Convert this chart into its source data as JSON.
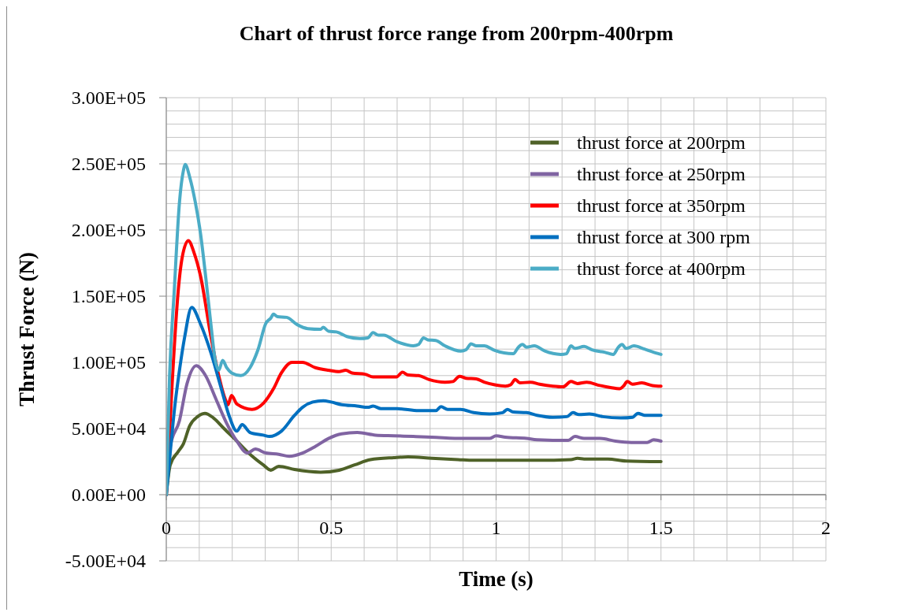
{
  "chart_data": {
    "type": "line",
    "title": "Chart of thrust force range from 200rpm-400rpm",
    "xlabel": "Time (s)",
    "ylabel": "Thrust Force (N)",
    "xlim": [
      0,
      2
    ],
    "xticks": [
      0,
      {
        "value": 0.1,
        "label": null
      },
      {
        "value": 0.2,
        "label": null
      },
      {
        "value": 0.3,
        "label": null
      },
      {
        "value": 0.4,
        "label": null
      },
      0.5,
      {
        "value": 0.6,
        "label": null
      },
      {
        "value": 0.7,
        "label": null
      },
      {
        "value": 0.8,
        "label": null
      },
      {
        "value": 0.9,
        "label": null
      },
      1,
      {
        "value": 1.1,
        "label": null
      },
      {
        "value": 1.2,
        "label": null
      },
      {
        "value": 1.3,
        "label": null
      },
      {
        "value": 1.4,
        "label": null
      },
      1.5,
      {
        "value": 1.6,
        "label": null
      },
      {
        "value": 1.7,
        "label": null
      },
      {
        "value": 1.8,
        "label": null
      },
      {
        "value": 1.9,
        "label": null
      },
      2
    ],
    "ylim": [
      -50000,
      300000
    ],
    "yticks": [
      {
        "value": -50000,
        "label": "-5.00E+04"
      },
      {
        "value": -40000,
        "label": null
      },
      {
        "value": -30000,
        "label": null
      },
      {
        "value": -20000,
        "label": null
      },
      {
        "value": -10000,
        "label": null
      },
      {
        "value": 0,
        "label": "0.00E+00"
      },
      {
        "value": 10000,
        "label": null
      },
      {
        "value": 20000,
        "label": null
      },
      {
        "value": 30000,
        "label": null
      },
      {
        "value": 40000,
        "label": null
      },
      {
        "value": 50000,
        "label": "5.00E+04"
      },
      {
        "value": 60000,
        "label": null
      },
      {
        "value": 70000,
        "label": null
      },
      {
        "value": 80000,
        "label": null
      },
      {
        "value": 90000,
        "label": null
      },
      {
        "value": 100000,
        "label": "1.00E+05"
      },
      {
        "value": 110000,
        "label": null
      },
      {
        "value": 120000,
        "label": null
      },
      {
        "value": 130000,
        "label": null
      },
      {
        "value": 140000,
        "label": null
      },
      {
        "value": 150000,
        "label": "1.50E+05"
      },
      {
        "value": 160000,
        "label": null
      },
      {
        "value": 170000,
        "label": null
      },
      {
        "value": 180000,
        "label": null
      },
      {
        "value": 190000,
        "label": null
      },
      {
        "value": 200000,
        "label": "2.00E+05"
      },
      {
        "value": 210000,
        "label": null
      },
      {
        "value": 220000,
        "label": null
      },
      {
        "value": 230000,
        "label": null
      },
      {
        "value": 240000,
        "label": null
      },
      {
        "value": 250000,
        "label": "2.50E+05"
      },
      {
        "value": 260000,
        "label": null
      },
      {
        "value": 270000,
        "label": null
      },
      {
        "value": 280000,
        "label": null
      },
      {
        "value": 290000,
        "label": null
      },
      {
        "value": 300000,
        "label": "3.00E+05"
      }
    ],
    "grid": true,
    "legend": "top right",
    "series": [
      {
        "name": "thrust force at 200rpm",
        "color": "#4f6228",
        "x": [
          0,
          0.012,
          0.036,
          0.052,
          0.071,
          0.095,
          0.117,
          0.143,
          0.175,
          0.214,
          0.254,
          0.294,
          0.317,
          0.341,
          0.389,
          0.468,
          0.524,
          0.571,
          0.619,
          0.69,
          0.733,
          0.805,
          0.885,
          0.932,
          0.996,
          1.124,
          1.227,
          1.247,
          1.267,
          1.339,
          1.394,
          1.5
        ],
        "values": [
          0,
          22500,
          32500,
          38500,
          52000,
          59000,
          61500,
          58000,
          50000,
          40500,
          30500,
          22500,
          18500,
          21500,
          19000,
          17000,
          18500,
          22500,
          26500,
          28000,
          28500,
          27500,
          26500,
          26000,
          26000,
          26000,
          26500,
          27500,
          27000,
          27000,
          25500,
          25000
        ]
      },
      {
        "name": "thrust force at 250rpm",
        "color": "#8064a2",
        "x": [
          0,
          0.012,
          0.04,
          0.063,
          0.091,
          0.119,
          0.151,
          0.183,
          0.214,
          0.246,
          0.27,
          0.302,
          0.341,
          0.373,
          0.413,
          0.452,
          0.492,
          0.532,
          0.579,
          0.635,
          0.69,
          0.749,
          0.805,
          0.9,
          0.98,
          1.0,
          1.028,
          1.092,
          1.124,
          1.219,
          1.239,
          1.267,
          1.315,
          1.362,
          1.41,
          1.458,
          1.478,
          1.5
        ],
        "values": [
          0,
          36500,
          56000,
          84000,
          97500,
          90000,
          72000,
          54000,
          40500,
          31500,
          34500,
          31500,
          30500,
          29000,
          31500,
          36500,
          42500,
          46000,
          47000,
          45000,
          44500,
          44000,
          43500,
          42500,
          42500,
          44500,
          43500,
          42500,
          41500,
          41000,
          44000,
          42500,
          42500,
          40500,
          39500,
          39500,
          41500,
          40500
        ]
      },
      {
        "name": "thrust force at 350rpm",
        "color": "#ff0000",
        "x": [
          0,
          0.018,
          0.036,
          0.048,
          0.067,
          0.084,
          0.104,
          0.135,
          0.159,
          0.179,
          0.187,
          0.198,
          0.214,
          0.26,
          0.294,
          0.325,
          0.349,
          0.381,
          0.413,
          0.452,
          0.492,
          0.524,
          0.544,
          0.563,
          0.603,
          0.627,
          0.698,
          0.716,
          0.733,
          0.765,
          0.797,
          0.845,
          0.869,
          0.889,
          0.909,
          0.94,
          0.964,
          0.996,
          1.028,
          1.044,
          1.058,
          1.072,
          1.104,
          1.132,
          1.172,
          1.203,
          1.227,
          1.247,
          1.275,
          1.315,
          1.347,
          1.374,
          1.386,
          1.398,
          1.414,
          1.442,
          1.474,
          1.5
        ],
        "values": [
          0,
          85000,
          153500,
          179000,
          192000,
          183000,
          165000,
          120000,
          90000,
          72000,
          68000,
          75000,
          68500,
          64500,
          69000,
          80000,
          92000,
          100000,
          100000,
          96000,
          94000,
          93000,
          94000,
          92000,
          91000,
          89000,
          89000,
          92500,
          90500,
          90000,
          87000,
          85000,
          85500,
          89500,
          88000,
          87500,
          85000,
          83000,
          82000,
          83000,
          87000,
          84500,
          85000,
          83500,
          82000,
          81500,
          85500,
          84000,
          85000,
          82500,
          81000,
          80000,
          82000,
          85500,
          83500,
          84500,
          82500,
          82000
        ]
      },
      {
        "name": "thrust force at 300 rpm",
        "color": "#0070c0",
        "x": [
          0,
          0.012,
          0.025,
          0.04,
          0.056,
          0.077,
          0.103,
          0.135,
          0.167,
          0.19,
          0.214,
          0.23,
          0.254,
          0.294,
          0.313,
          0.349,
          0.389,
          0.413,
          0.444,
          0.476,
          0.5,
          0.532,
          0.579,
          0.611,
          0.627,
          0.651,
          0.7,
          0.765,
          0.817,
          0.833,
          0.853,
          0.893,
          0.932,
          0.98,
          1.02,
          1.034,
          1.052,
          1.092,
          1.124,
          1.172,
          1.215,
          1.233,
          1.251,
          1.283,
          1.323,
          1.378,
          1.414,
          1.43,
          1.45,
          1.5
        ],
        "values": [
          0,
          32000,
          65000,
          94000,
          119500,
          141500,
          129500,
          107500,
          80000,
          60000,
          48000,
          53000,
          47000,
          45000,
          44000,
          48000,
          60000,
          66000,
          70000,
          71000,
          70000,
          68000,
          67000,
          66000,
          67000,
          65000,
          65000,
          63500,
          63500,
          66500,
          64500,
          64500,
          62000,
          61000,
          62000,
          64500,
          62500,
          62000,
          60000,
          58500,
          59000,
          62000,
          60500,
          61000,
          59000,
          58000,
          58500,
          61500,
          60000,
          60000
        ]
      },
      {
        "name": "thrust force at 400rpm",
        "color": "#4bacc6",
        "x": [
          0,
          0.01,
          0.024,
          0.04,
          0.052,
          0.057,
          0.072,
          0.088,
          0.104,
          0.12,
          0.135,
          0.147,
          0.159,
          0.171,
          0.183,
          0.198,
          0.226,
          0.254,
          0.278,
          0.302,
          0.317,
          0.325,
          0.337,
          0.365,
          0.397,
          0.429,
          0.468,
          0.476,
          0.492,
          0.516,
          0.548,
          0.587,
          0.611,
          0.627,
          0.643,
          0.659,
          0.7,
          0.749,
          0.765,
          0.78,
          0.793,
          0.817,
          0.845,
          0.893,
          0.909,
          0.924,
          0.94,
          0.964,
          0.996,
          1.052,
          1.068,
          1.08,
          1.092,
          1.116,
          1.148,
          1.196,
          1.213,
          1.227,
          1.239,
          1.267,
          1.291,
          1.331,
          1.355,
          1.371,
          1.382,
          1.394,
          1.418,
          1.45,
          1.474,
          1.5
        ],
        "values": [
          0,
          90000,
          153500,
          221000,
          245000,
          249500,
          239000,
          221000,
          197000,
          163500,
          129500,
          104000,
          94000,
          101500,
          96000,
          92000,
          90000,
          96000,
          109500,
          129500,
          133500,
          136500,
          134500,
          134000,
          128500,
          125500,
          125000,
          126500,
          123500,
          123000,
          119500,
          118000,
          118500,
          122500,
          120500,
          120500,
          115500,
          112500,
          113500,
          118500,
          117000,
          116500,
          112500,
          108500,
          109500,
          114000,
          112500,
          112500,
          109000,
          106500,
          111500,
          113500,
          111500,
          112500,
          108500,
          106000,
          106500,
          112500,
          110500,
          112000,
          109500,
          107500,
          106000,
          111500,
          113500,
          110500,
          112500,
          110000,
          108000,
          106000
        ]
      }
    ]
  }
}
